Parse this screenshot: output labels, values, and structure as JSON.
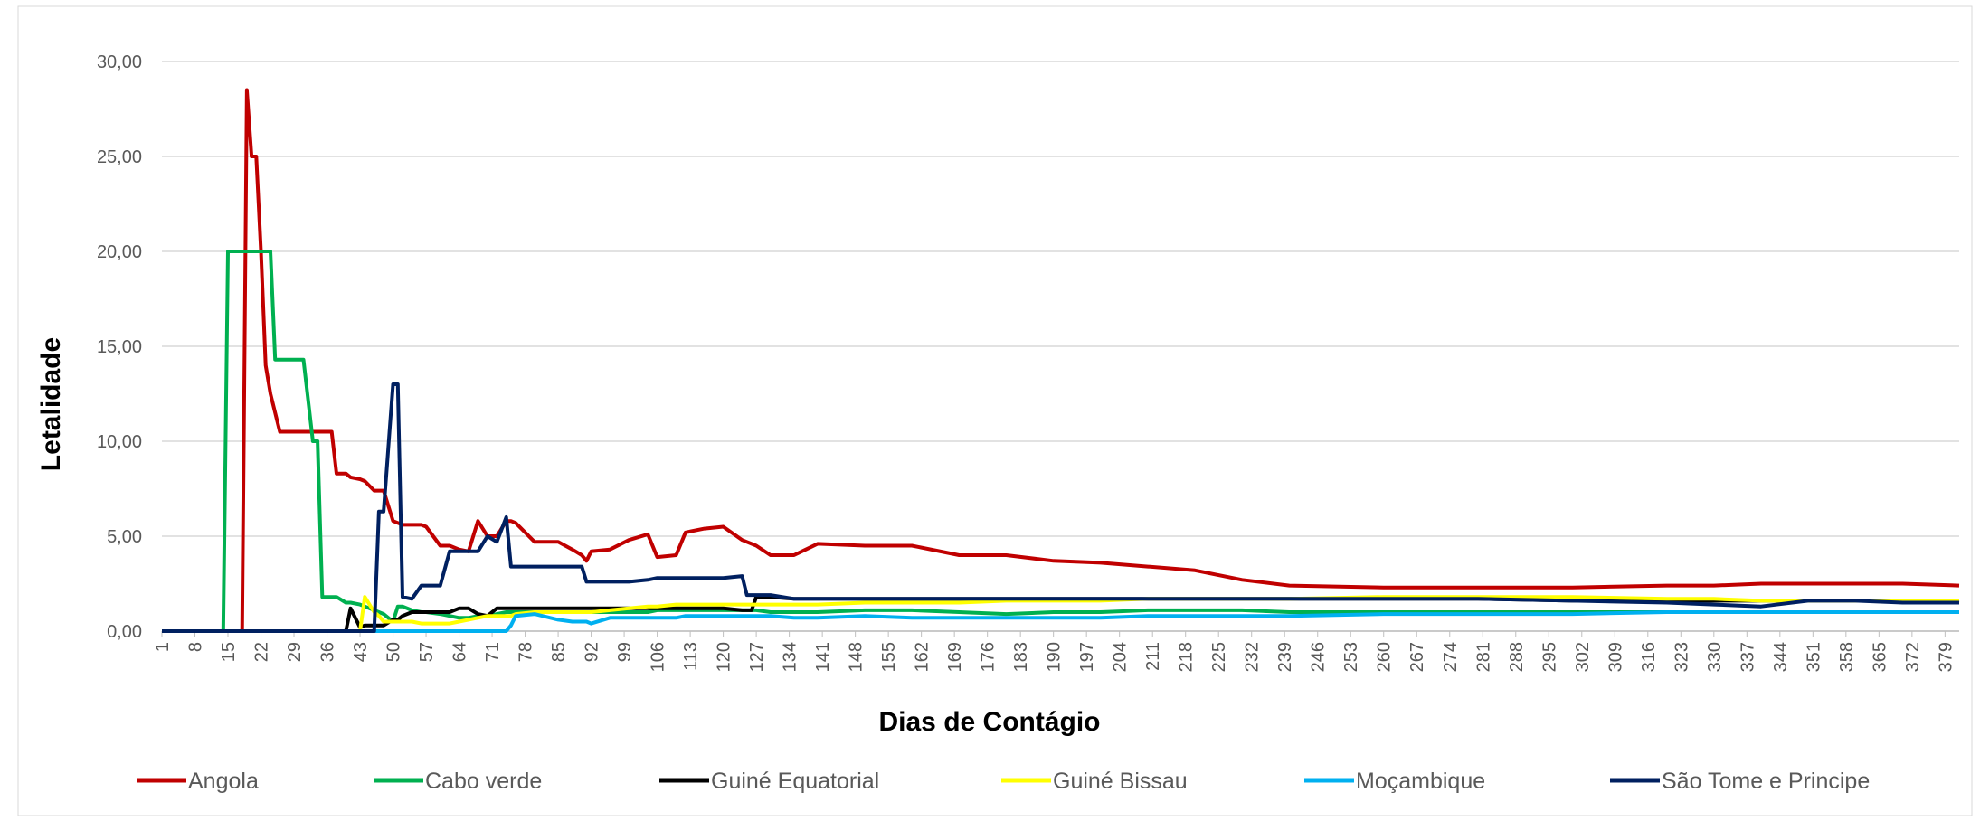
{
  "chart_data": {
    "type": "line",
    "x_label": "Dias de Contágio",
    "y_label": "Letalidade",
    "x": [
      1,
      14,
      15,
      16,
      18,
      19,
      20,
      21,
      22,
      23,
      24,
      25,
      26,
      27,
      30,
      31,
      33,
      34,
      35,
      37,
      38,
      40,
      41,
      43,
      44,
      46,
      47,
      48,
      50,
      51,
      52,
      54,
      56,
      57,
      60,
      62,
      64,
      66,
      68,
      70,
      72,
      74,
      75,
      76,
      80,
      85,
      88,
      90,
      91,
      92,
      96,
      100,
      104,
      106,
      110,
      112,
      116,
      120,
      124,
      125,
      126,
      127,
      130,
      135,
      140,
      150,
      160,
      170,
      180,
      190,
      200,
      210,
      220,
      230,
      240,
      260,
      280,
      300,
      320,
      330,
      340,
      350,
      360,
      370,
      382
    ],
    "series": [
      {
        "name": "Angola",
        "color": "#c00000",
        "values": [
          0,
          0,
          0,
          0,
          0,
          28.5,
          25,
          25,
          20,
          14,
          12.5,
          11.5,
          10.5,
          10.5,
          10.5,
          10.5,
          10.5,
          10.5,
          10.5,
          10.5,
          8.3,
          8.3,
          8.1,
          8.0,
          7.9,
          7.4,
          7.4,
          7.4,
          5.8,
          5.7,
          5.6,
          5.6,
          5.6,
          5.5,
          4.5,
          4.5,
          4.3,
          4.2,
          5.8,
          5.0,
          5.0,
          5.8,
          5.8,
          5.7,
          4.7,
          4.7,
          4.3,
          4.0,
          3.7,
          4.2,
          4.3,
          4.8,
          5.1,
          3.9,
          4.0,
          5.2,
          5.4,
          5.5,
          4.8,
          4.7,
          4.6,
          4.5,
          4.0,
          4.0,
          4.6,
          4.5,
          4.5,
          4.0,
          4.0,
          3.7,
          3.6,
          3.4,
          3.2,
          2.7,
          2.4,
          2.3,
          2.3,
          2.3,
          2.4,
          2.4,
          2.5,
          2.5,
          2.5,
          2.5,
          2.4
        ]
      },
      {
        "name": "Cabo verde",
        "color": "#00b050",
        "values": [
          0,
          0,
          20,
          20,
          20,
          20,
          20,
          20,
          20,
          20,
          20,
          14.3,
          14.3,
          14.3,
          14.3,
          14.3,
          10,
          10,
          1.8,
          1.8,
          1.8,
          1.5,
          1.5,
          1.4,
          1.3,
          1.1,
          1.0,
          0.9,
          0.5,
          1.3,
          1.3,
          1.1,
          1.0,
          1.0,
          0.9,
          0.8,
          0.7,
          0.7,
          0.8,
          0.8,
          0.9,
          1.0,
          1.0,
          1.0,
          1.0,
          1.0,
          1.0,
          1.0,
          1.0,
          1.0,
          1.0,
          1.0,
          1.0,
          1.1,
          1.1,
          1.1,
          1.1,
          1.1,
          1.1,
          1.1,
          1.1,
          1.1,
          1.0,
          1.0,
          1.0,
          1.1,
          1.1,
          1.0,
          0.9,
          1.0,
          1.0,
          1.1,
          1.1,
          1.1,
          1.0,
          1.0,
          1.0,
          1.0,
          1.0,
          1.0,
          1.0,
          1.0,
          1.0,
          1.0,
          1.0
        ]
      },
      {
        "name": "Guiné Equatorial",
        "color": "#000000",
        "values": [
          0,
          0,
          0,
          0,
          0,
          0,
          0,
          0,
          0,
          0,
          0,
          0,
          0,
          0,
          0,
          0,
          0,
          0,
          0,
          0,
          0,
          0,
          1.2,
          0.2,
          0.3,
          0.3,
          0.3,
          0.3,
          0.6,
          0.6,
          0.8,
          1.0,
          1.0,
          1.0,
          1.0,
          1.0,
          1.2,
          1.2,
          0.9,
          0.8,
          1.2,
          1.2,
          1.2,
          1.2,
          1.2,
          1.2,
          1.2,
          1.2,
          1.2,
          1.2,
          1.2,
          1.2,
          1.2,
          1.2,
          1.2,
          1.2,
          1.2,
          1.2,
          1.1,
          1.1,
          1.1,
          1.8,
          1.8,
          1.7,
          1.7,
          1.7,
          1.7,
          1.7,
          1.7,
          1.7,
          1.7,
          1.7,
          1.7,
          1.7,
          1.7,
          1.7,
          1.7,
          1.6,
          1.6,
          1.6,
          1.6,
          1.6,
          1.6,
          1.6,
          1.5
        ]
      },
      {
        "name": "Guiné Bissau",
        "color": "#ffff00",
        "values": [
          0,
          0,
          0,
          0,
          0,
          0,
          0,
          0,
          0,
          0,
          0,
          0,
          0,
          0,
          0,
          0,
          0,
          0,
          0,
          0,
          0,
          0,
          0,
          0,
          1.8,
          1.0,
          0.8,
          0.5,
          0.5,
          0.5,
          0.5,
          0.5,
          0.4,
          0.4,
          0.4,
          0.4,
          0.5,
          0.6,
          0.7,
          0.8,
          0.8,
          0.8,
          0.8,
          0.9,
          1.0,
          1.0,
          1.0,
          1.0,
          1.0,
          1.0,
          1.1,
          1.2,
          1.3,
          1.3,
          1.4,
          1.4,
          1.4,
          1.4,
          1.4,
          1.4,
          1.4,
          1.4,
          1.4,
          1.4,
          1.4,
          1.5,
          1.5,
          1.5,
          1.6,
          1.6,
          1.6,
          1.7,
          1.7,
          1.7,
          1.7,
          1.8,
          1.8,
          1.8,
          1.7,
          1.7,
          1.6,
          1.6,
          1.6,
          1.6,
          1.6
        ]
      },
      {
        "name": "Moçambique",
        "color": "#00b0f0",
        "values": [
          0,
          0,
          0,
          0,
          0,
          0,
          0,
          0,
          0,
          0,
          0,
          0,
          0,
          0,
          0,
          0,
          0,
          0,
          0,
          0,
          0,
          0,
          0,
          0,
          0,
          0,
          0,
          0,
          0,
          0,
          0,
          0,
          0,
          0,
          0,
          0,
          0,
          0,
          0,
          0,
          0,
          0,
          0.3,
          0.8,
          0.9,
          0.6,
          0.5,
          0.5,
          0.5,
          0.4,
          0.7,
          0.7,
          0.7,
          0.7,
          0.7,
          0.8,
          0.8,
          0.8,
          0.8,
          0.8,
          0.8,
          0.8,
          0.8,
          0.7,
          0.7,
          0.8,
          0.7,
          0.7,
          0.7,
          0.7,
          0.7,
          0.8,
          0.8,
          0.8,
          0.8,
          0.9,
          0.9,
          0.9,
          1.0,
          1.0,
          1.0,
          1.0,
          1.0,
          1.0,
          1.0
        ]
      },
      {
        "name": "São Tome e Principe",
        "color": "#002060",
        "values": [
          0,
          0,
          0,
          0,
          0,
          0,
          0,
          0,
          0,
          0,
          0,
          0,
          0,
          0,
          0,
          0,
          0,
          0,
          0,
          0,
          0,
          0,
          0,
          0,
          0,
          0,
          6.3,
          6.3,
          13,
          13,
          1.8,
          1.7,
          2.4,
          2.4,
          2.4,
          4.2,
          4.2,
          4.2,
          4.2,
          5.0,
          4.7,
          6.0,
          3.4,
          3.4,
          3.4,
          3.4,
          3.4,
          3.4,
          2.6,
          2.6,
          2.6,
          2.6,
          2.7,
          2.8,
          2.8,
          2.8,
          2.8,
          2.8,
          2.9,
          1.9,
          1.9,
          1.9,
          1.9,
          1.7,
          1.7,
          1.7,
          1.7,
          1.7,
          1.7,
          1.7,
          1.7,
          1.7,
          1.7,
          1.7,
          1.7,
          1.7,
          1.7,
          1.6,
          1.5,
          1.4,
          1.3,
          1.6,
          1.6,
          1.5,
          1.5
        ]
      }
    ],
    "xlim": [
      1,
      382
    ],
    "xticks": [
      1,
      8,
      15,
      22,
      29,
      36,
      43,
      50,
      57,
      64,
      71,
      78,
      85,
      92,
      99,
      106,
      113,
      120,
      127,
      134,
      141,
      148,
      155,
      162,
      169,
      176,
      183,
      190,
      197,
      204,
      211,
      218,
      225,
      232,
      239,
      246,
      253,
      260,
      267,
      274,
      281,
      288,
      295,
      302,
      309,
      316,
      323,
      330,
      337,
      344,
      351,
      358,
      365,
      372,
      379
    ],
    "ylim": [
      0,
      30
    ],
    "yticks": [
      {
        "value": 0,
        "label": "0,00"
      },
      {
        "value": 5,
        "label": "5,00"
      },
      {
        "value": 10,
        "label": "10,00"
      },
      {
        "value": 15,
        "label": "15,00"
      },
      {
        "value": 20,
        "label": "20,00"
      },
      {
        "value": 25,
        "label": "25,00"
      },
      {
        "value": 30,
        "label": "30,00"
      }
    ],
    "grid": true,
    "legend": "bottom"
  }
}
